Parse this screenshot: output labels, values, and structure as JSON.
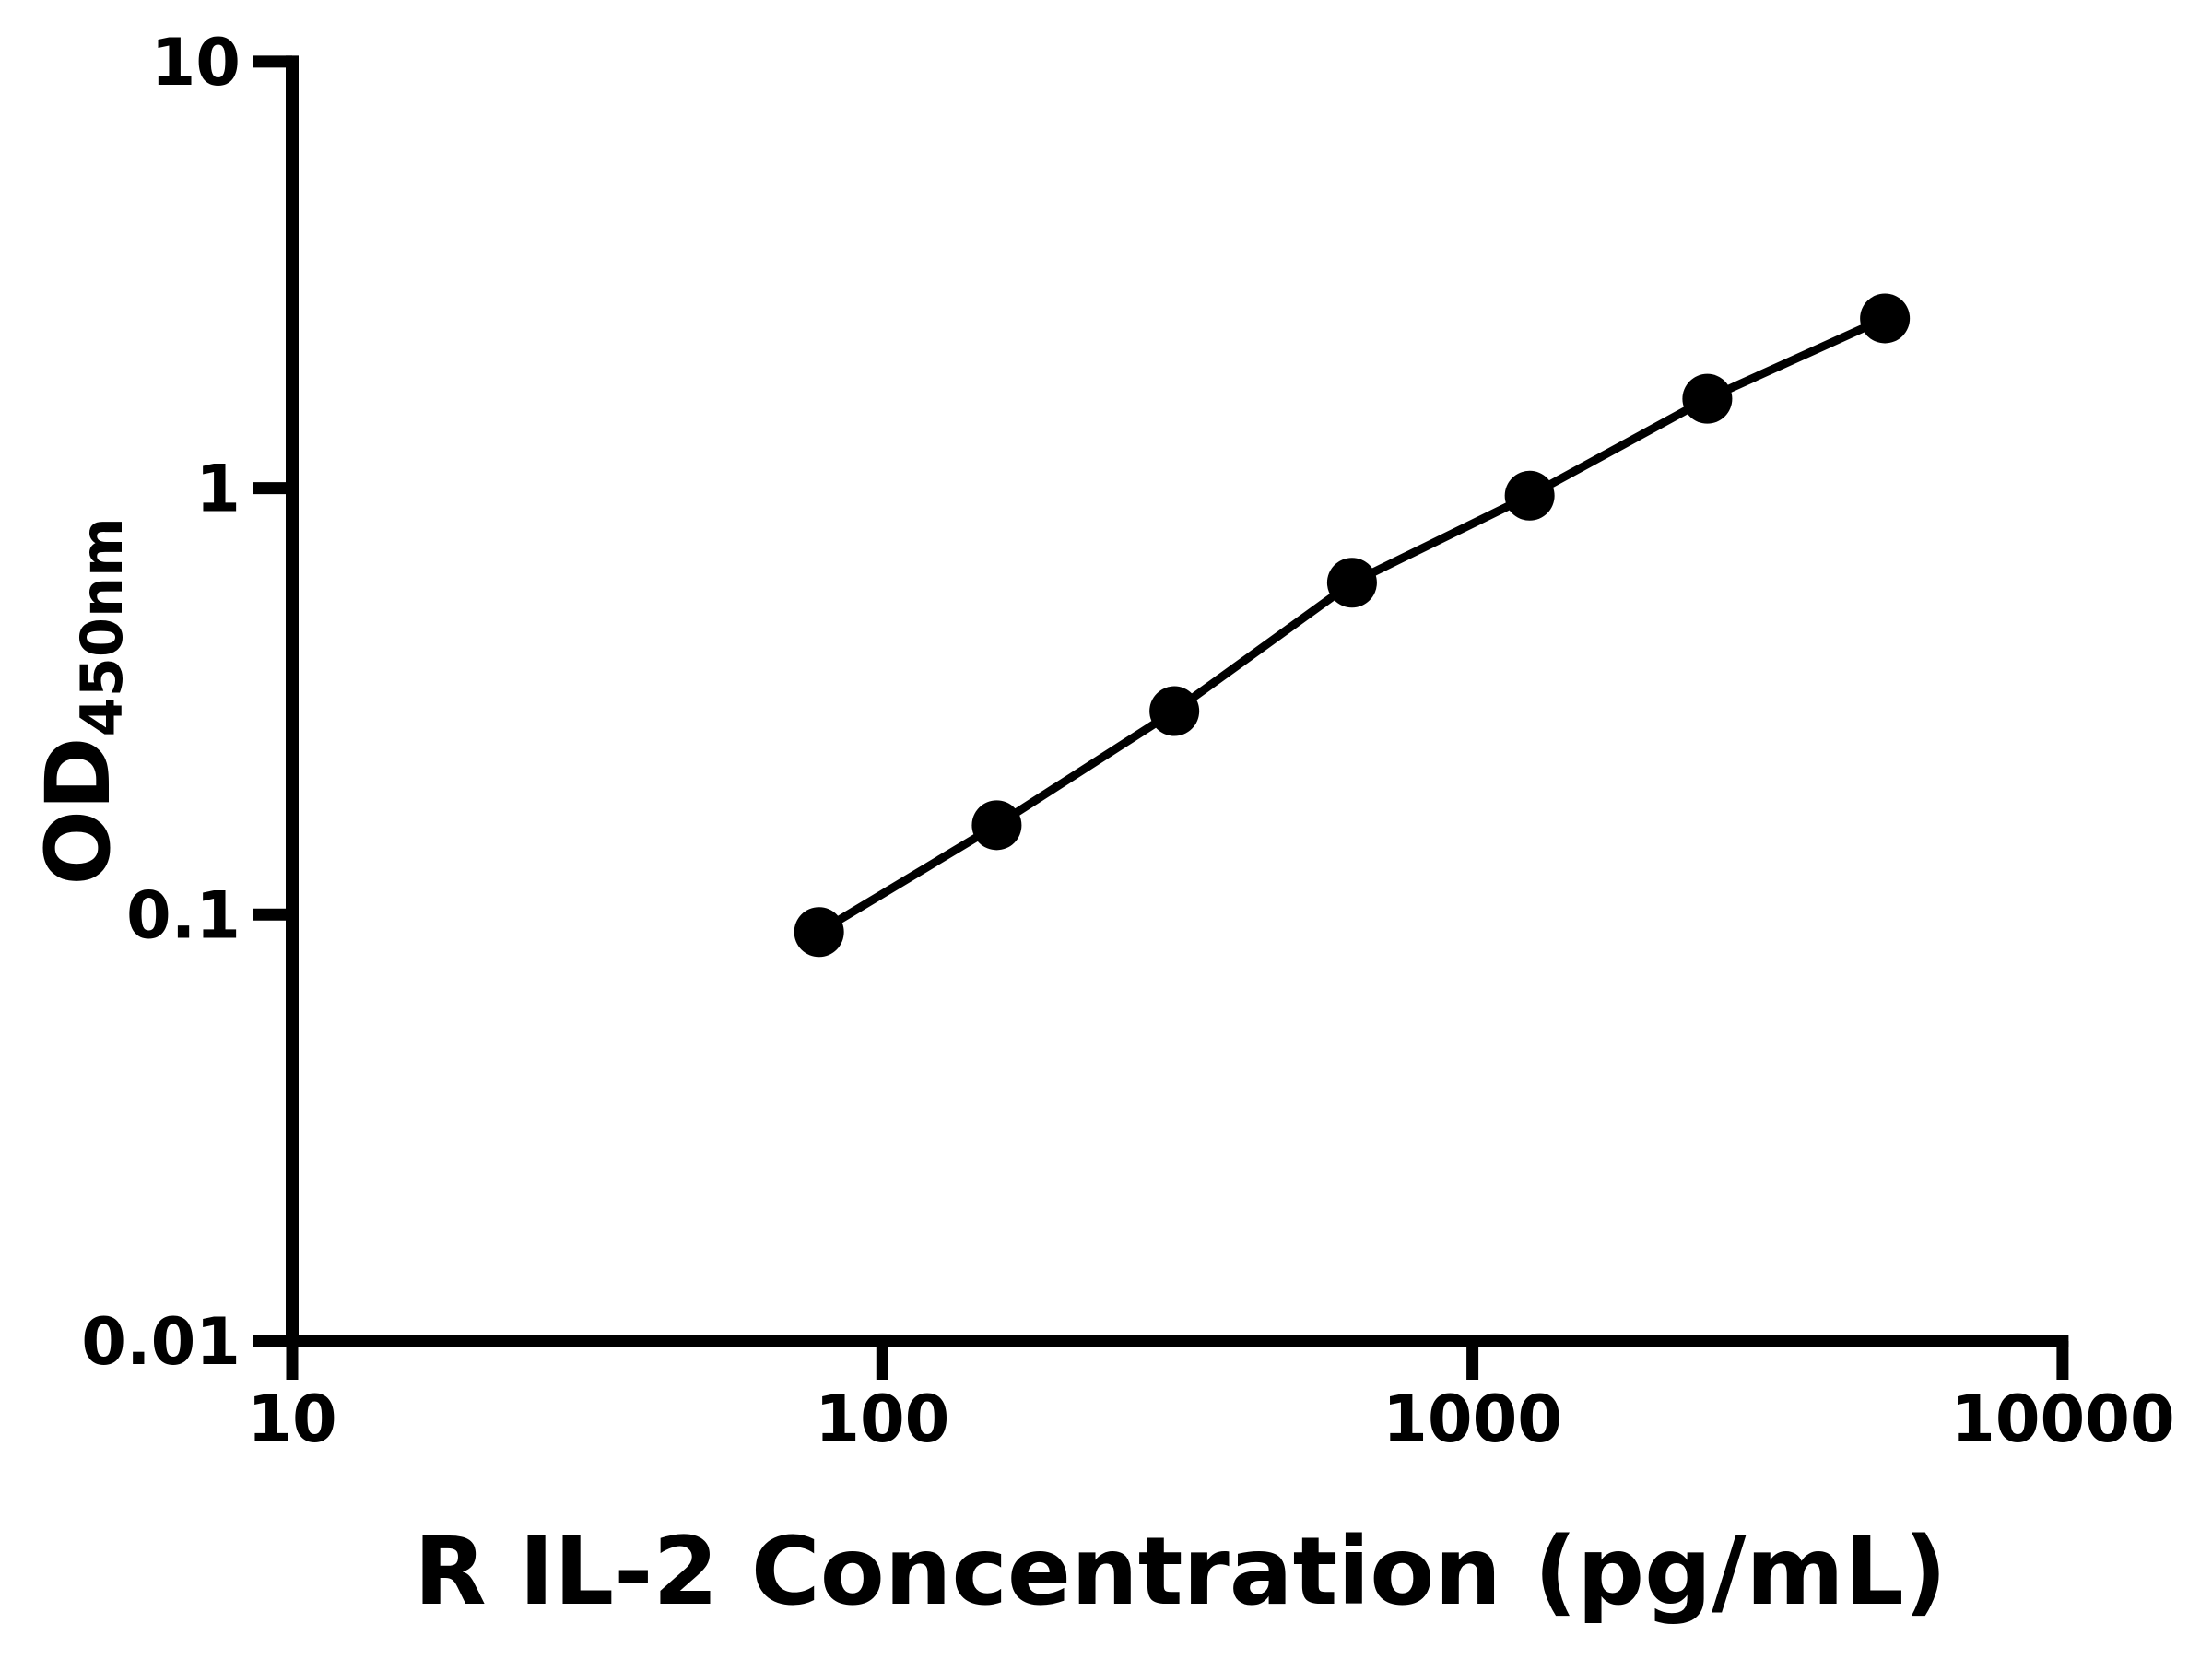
{
  "chart_data": {
    "type": "line",
    "title": "",
    "xlabel": "R IL-2 Concentration (pg/mL)",
    "ylabel": "OD450nm",
    "ylabel_main": "OD",
    "ylabel_subscript": "450nm",
    "x": [
      78.125,
      156.25,
      312.5,
      625,
      1250,
      2500,
      5000
    ],
    "y": [
      0.091,
      0.162,
      0.3,
      0.6,
      0.96,
      1.62,
      2.5
    ],
    "x_scale": "log",
    "y_scale": "log",
    "xlim": [
      10,
      10000
    ],
    "ylim": [
      0.01,
      10
    ],
    "x_tick_labels": [
      "10",
      "100",
      "1000",
      "10000"
    ],
    "y_tick_labels": [
      "10",
      "1",
      "0.1",
      "0.01"
    ],
    "grid": false,
    "legend": null,
    "marker_shape": "circle",
    "marker_color": "#000000",
    "line_color": "#000000",
    "axis_color": "#000000",
    "background_color": "#ffffff"
  }
}
